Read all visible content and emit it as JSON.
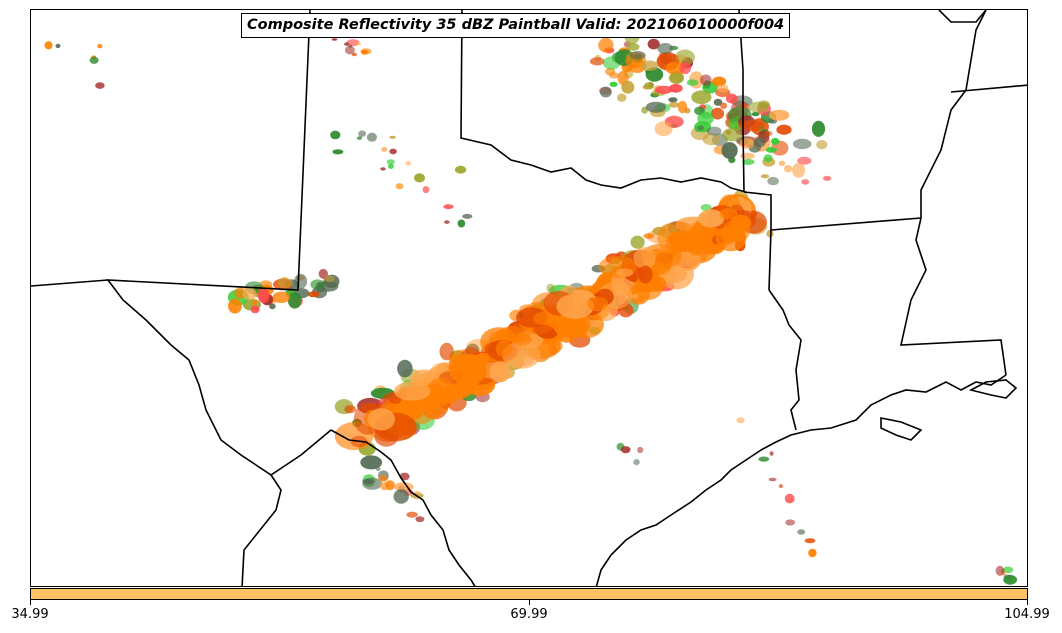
{
  "title": "Composite Reflectivity 35 dBZ Paintball Valid: 202106010000f004",
  "colorbar": {
    "color": "#ffc266",
    "ticks": [
      "34.99",
      "69.99",
      "104.99"
    ]
  },
  "map": {
    "boundary_color": "#000000",
    "paintball_colors": [
      "#ff7f00",
      "#e34a00",
      "#33cc33",
      "#2e8b2e",
      "#9aa62b",
      "#a83232",
      "#ff4d4d",
      "#ffa64d",
      "#556b55",
      "#c8a43c"
    ]
  }
}
